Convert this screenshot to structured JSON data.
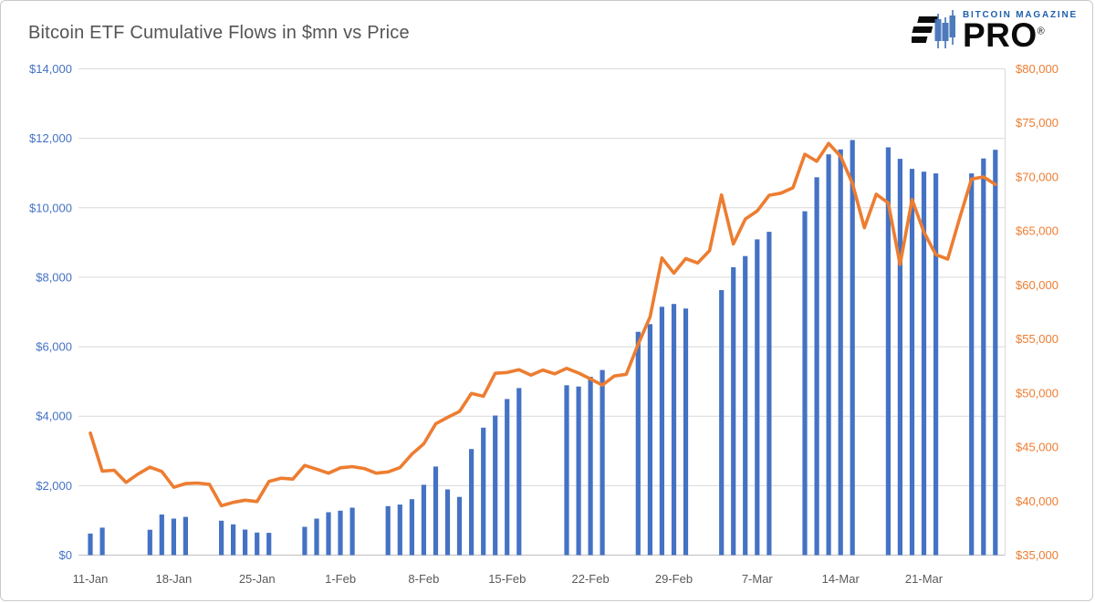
{
  "logo": {
    "magazine": "BITCOIN MAGAZINE",
    "pro": "PRO",
    "registered": "®"
  },
  "colors": {
    "bar": "#4472C4",
    "line": "#ED7D31",
    "left_axis_text": "#4472C4",
    "right_axis_text": "#ED7D31",
    "x_axis_text": "#595959",
    "gridline": "#D9D9D9",
    "baseline": "#BFBFBF",
    "title_text": "#545454",
    "logo_blue": "#1E5FAD",
    "logo_black": "#0B0B0B"
  },
  "chart_data": {
    "type": "combo",
    "title": "Bitcoin ETF Cumulative Flows in $mn vs Price",
    "series_info": [
      {
        "name": "Cumulative ETF Flows ($mn)",
        "type": "bar",
        "axis": "left"
      },
      {
        "name": "Bitcoin Price ($)",
        "type": "line",
        "axis": "right"
      }
    ],
    "left_axis": {
      "min": 0,
      "max": 14000,
      "step": 2000,
      "tick_values": [
        0,
        2000,
        4000,
        6000,
        8000,
        10000,
        12000,
        14000
      ],
      "tick_labels": [
        "$0",
        "$2,000",
        "$4,000",
        "$6,000",
        "$8,000",
        "$10,000",
        "$12,000",
        "$14,000"
      ]
    },
    "right_axis": {
      "min": 35000,
      "max": 80000,
      "step": 5000,
      "tick_values": [
        35000,
        40000,
        45000,
        50000,
        55000,
        60000,
        65000,
        70000,
        75000,
        80000
      ],
      "tick_labels": [
        "$35,000",
        "$40,000",
        "$45,000",
        "$50,000",
        "$55,000",
        "$60,000",
        "$65,000",
        "$70,000",
        "$75,000",
        "$80,000"
      ]
    },
    "x_axis": {
      "start_date": "11-Jan",
      "end_date": "27-Mar",
      "total_days": 77,
      "tick_columns": [
        "label",
        "day_index"
      ],
      "ticks": [
        [
          "11-Jan",
          0
        ],
        [
          "18-Jan",
          7
        ],
        [
          "25-Jan",
          14
        ],
        [
          "1-Feb",
          21
        ],
        [
          "8-Feb",
          28
        ],
        [
          "15-Feb",
          35
        ],
        [
          "22-Feb",
          42
        ],
        [
          "29-Feb",
          49
        ],
        [
          "7-Mar",
          56
        ],
        [
          "14-Mar",
          63
        ],
        [
          "21-Mar",
          70
        ]
      ]
    },
    "grid": "horizontal-only",
    "legend": "none",
    "bar_columns": [
      "date",
      "day_index",
      "cumulative_flow_mn"
    ],
    "bars": [
      [
        "11-Jan",
        0,
        620
      ],
      [
        "12-Jan",
        1,
        790
      ],
      [
        "16-Jan",
        5,
        730
      ],
      [
        "17-Jan",
        6,
        1170
      ],
      [
        "18-Jan",
        7,
        1050
      ],
      [
        "19-Jan",
        8,
        1100
      ],
      [
        "22-Jan",
        11,
        990
      ],
      [
        "23-Jan",
        12,
        885
      ],
      [
        "24-Jan",
        13,
        735
      ],
      [
        "25-Jan",
        14,
        650
      ],
      [
        "26-Jan",
        15,
        640
      ],
      [
        "29-Jan",
        18,
        815
      ],
      [
        "30-Jan",
        19,
        1050
      ],
      [
        "31-Jan",
        20,
        1235
      ],
      [
        "1-Feb",
        21,
        1280
      ],
      [
        "2-Feb",
        22,
        1365
      ],
      [
        "5-Feb",
        25,
        1410
      ],
      [
        "6-Feb",
        26,
        1455
      ],
      [
        "7-Feb",
        27,
        1610
      ],
      [
        "8-Feb",
        28,
        2025
      ],
      [
        "9-Feb",
        29,
        2550
      ],
      [
        "10-Feb",
        30,
        1890
      ],
      [
        "11-Feb",
        31,
        1675
      ],
      [
        "12-Feb",
        32,
        3055
      ],
      [
        "13-Feb",
        33,
        3670
      ],
      [
        "14-Feb",
        34,
        4020
      ],
      [
        "15-Feb",
        35,
        4495
      ],
      [
        "16-Feb",
        36,
        4810
      ],
      [
        "20-Feb",
        40,
        4890
      ],
      [
        "21-Feb",
        41,
        4855
      ],
      [
        "22-Feb",
        42,
        5135
      ],
      [
        "23-Feb",
        43,
        5330
      ],
      [
        "26-Feb",
        46,
        6430
      ],
      [
        "27-Feb",
        47,
        6650
      ],
      [
        "28-Feb",
        48,
        7150
      ],
      [
        "29-Feb",
        49,
        7230
      ],
      [
        "1-Mar",
        50,
        7100
      ],
      [
        "4-Mar",
        53,
        7630
      ],
      [
        "5-Mar",
        54,
        8290
      ],
      [
        "6-Mar",
        55,
        8610
      ],
      [
        "7-Mar",
        56,
        9090
      ],
      [
        "8-Mar",
        57,
        9310
      ],
      [
        "11-Mar",
        60,
        9900
      ],
      [
        "12-Mar",
        61,
        10880
      ],
      [
        "13-Mar",
        62,
        11540
      ],
      [
        "14-Mar",
        63,
        11680
      ],
      [
        "15-Mar",
        64,
        11950
      ],
      [
        "18-Mar",
        67,
        11740
      ],
      [
        "19-Mar",
        68,
        11410
      ],
      [
        "20-Mar",
        69,
        11120
      ],
      [
        "21-Mar",
        70,
        11040
      ],
      [
        "22-Mar",
        71,
        10990
      ],
      [
        "25-Mar",
        74,
        10990
      ],
      [
        "26-Mar",
        75,
        11420
      ],
      [
        "27-Mar",
        76,
        11670
      ]
    ],
    "line_columns": [
      "date",
      "day_index",
      "price_usd"
    ],
    "line": [
      [
        "11-Jan",
        0,
        46300
      ],
      [
        "12-Jan",
        1,
        42780
      ],
      [
        "13-Jan",
        2,
        42850
      ],
      [
        "14-Jan",
        3,
        41730
      ],
      [
        "15-Jan",
        4,
        42500
      ],
      [
        "16-Jan",
        5,
        43140
      ],
      [
        "17-Jan",
        6,
        42740
      ],
      [
        "18-Jan",
        7,
        41280
      ],
      [
        "19-Jan",
        8,
        41620
      ],
      [
        "20-Jan",
        9,
        41670
      ],
      [
        "21-Jan",
        10,
        41550
      ],
      [
        "22-Jan",
        11,
        39570
      ],
      [
        "23-Jan",
        12,
        39880
      ],
      [
        "24-Jan",
        13,
        40080
      ],
      [
        "25-Jan",
        14,
        39960
      ],
      [
        "26-Jan",
        15,
        41820
      ],
      [
        "27-Jan",
        16,
        42120
      ],
      [
        "28-Jan",
        17,
        42030
      ],
      [
        "29-Jan",
        18,
        43300
      ],
      [
        "30-Jan",
        19,
        42950
      ],
      [
        "31-Jan",
        20,
        42580
      ],
      [
        "1-Feb",
        21,
        43080
      ],
      [
        "2-Feb",
        22,
        43190
      ],
      [
        "3-Feb",
        23,
        43010
      ],
      [
        "4-Feb",
        24,
        42580
      ],
      [
        "5-Feb",
        25,
        42700
      ],
      [
        "6-Feb",
        26,
        43100
      ],
      [
        "7-Feb",
        27,
        44350
      ],
      [
        "8-Feb",
        28,
        45300
      ],
      [
        "9-Feb",
        29,
        47150
      ],
      [
        "10-Feb",
        30,
        47750
      ],
      [
        "11-Feb",
        31,
        48300
      ],
      [
        "12-Feb",
        32,
        49960
      ],
      [
        "13-Feb",
        33,
        49700
      ],
      [
        "14-Feb",
        34,
        51830
      ],
      [
        "15-Feb",
        35,
        51900
      ],
      [
        "16-Feb",
        36,
        52160
      ],
      [
        "17-Feb",
        37,
        51660
      ],
      [
        "18-Feb",
        38,
        52130
      ],
      [
        "19-Feb",
        39,
        51780
      ],
      [
        "20-Feb",
        40,
        52280
      ],
      [
        "21-Feb",
        41,
        51850
      ],
      [
        "22-Feb",
        42,
        51300
      ],
      [
        "23-Feb",
        43,
        50730
      ],
      [
        "24-Feb",
        44,
        51570
      ],
      [
        "25-Feb",
        45,
        51730
      ],
      [
        "26-Feb",
        46,
        54500
      ],
      [
        "27-Feb",
        47,
        57040
      ],
      [
        "28-Feb",
        48,
        62500
      ],
      [
        "29-Feb",
        49,
        61100
      ],
      [
        "1-Mar",
        50,
        62440
      ],
      [
        "2-Mar",
        51,
        62030
      ],
      [
        "3-Mar",
        52,
        63170
      ],
      [
        "4-Mar",
        53,
        68330
      ],
      [
        "5-Mar",
        54,
        63800
      ],
      [
        "6-Mar",
        55,
        66100
      ],
      [
        "7-Mar",
        56,
        66850
      ],
      [
        "8-Mar",
        57,
        68300
      ],
      [
        "9-Mar",
        58,
        68500
      ],
      [
        "10-Mar",
        59,
        69000
      ],
      [
        "11-Mar",
        60,
        72100
      ],
      [
        "12-Mar",
        61,
        71450
      ],
      [
        "13-Mar",
        62,
        73100
      ],
      [
        "14-Mar",
        63,
        71900
      ],
      [
        "15-Mar",
        64,
        69400
      ],
      [
        "16-Mar",
        65,
        65300
      ],
      [
        "17-Mar",
        66,
        68400
      ],
      [
        "18-Mar",
        67,
        67600
      ],
      [
        "19-Mar",
        68,
        61900
      ],
      [
        "20-Mar",
        69,
        67900
      ],
      [
        "21-Mar",
        70,
        64900
      ],
      [
        "22-Mar",
        71,
        62800
      ],
      [
        "23-Mar",
        72,
        62400
      ],
      [
        "24-Mar",
        73,
        66200
      ],
      [
        "25-Mar",
        74,
        69800
      ],
      [
        "26-Mar",
        75,
        70000
      ],
      [
        "27-Mar",
        76,
        69300
      ]
    ]
  }
}
